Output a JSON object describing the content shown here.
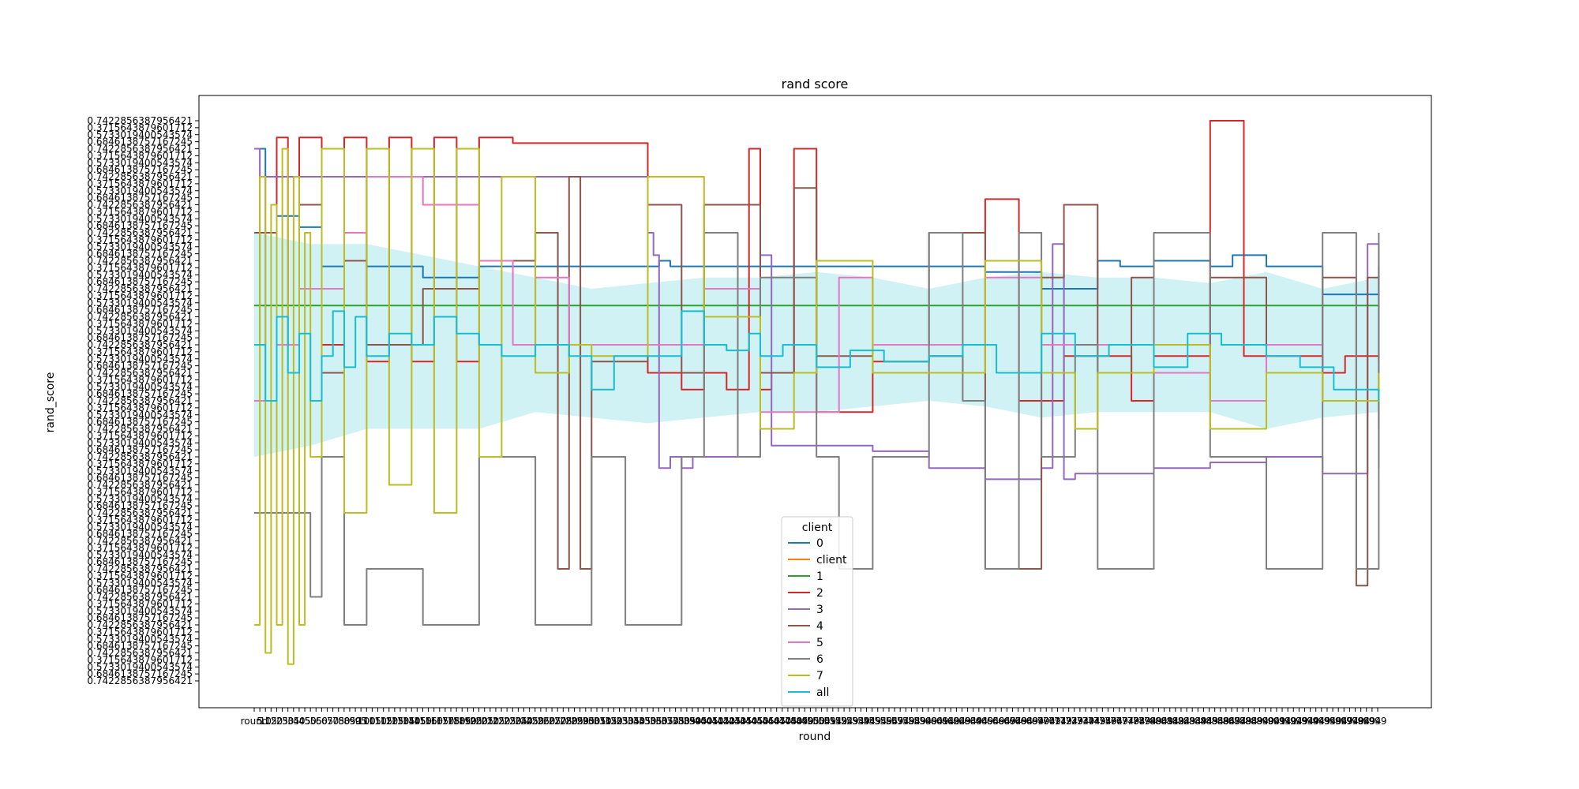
{
  "chart_data": {
    "type": "line",
    "title": "rand score",
    "xlabel": "round",
    "ylabel": "rand_score",
    "x_first_tick_label": "round",
    "y_tick_label_samples": [
      "0.7422856387956421",
      "0.6846138757167245",
      "0.5733019400543574",
      "0.3715643879601712"
    ],
    "grid": false,
    "legend": {
      "title": "client",
      "position": "bottom-center",
      "entries": [
        {
          "name": "0",
          "color": "#1f77b4"
        },
        {
          "name": "client",
          "color": "#ff7f0e"
        },
        {
          "name": "1",
          "color": "#2ca02c"
        },
        {
          "name": "2",
          "color": "#d62728"
        },
        {
          "name": "3",
          "color": "#9467bd"
        },
        {
          "name": "4",
          "color": "#8c564b"
        },
        {
          "name": "5",
          "color": "#e377c2"
        },
        {
          "name": "6",
          "color": "#7f7f7f"
        },
        {
          "name": "7",
          "color": "#bcbd22"
        },
        {
          "name": "all",
          "color": "#17becf"
        }
      ]
    },
    "x_range": [
      0,
      999
    ],
    "y_range": [
      0,
      1
    ],
    "series": [
      {
        "name": "0",
        "color": "#1f77b4",
        "x": [
          0,
          10,
          20,
          40,
          60,
          80,
          100,
          150,
          200,
          250,
          300,
          350,
          360,
          370,
          450,
          500,
          550,
          600,
          650,
          700,
          750,
          770,
          800,
          850,
          870,
          900,
          950,
          970,
          1000
        ],
        "y": [
          0.95,
          0.9,
          0.83,
          0.81,
          0.74,
          0.8,
          0.74,
          0.72,
          0.74,
          0.74,
          0.74,
          0.74,
          0.75,
          0.74,
          0.74,
          0.74,
          0.74,
          0.74,
          0.73,
          0.7,
          0.75,
          0.74,
          0.75,
          0.74,
          0.76,
          0.74,
          0.69,
          0.69,
          0.74
        ]
      },
      {
        "name": "1",
        "color": "#2ca02c",
        "x": [
          0,
          1000
        ],
        "y": [
          0.67,
          0.67
        ]
      },
      {
        "name": "2",
        "color": "#d62728",
        "x": [
          0,
          20,
          30,
          40,
          60,
          80,
          100,
          120,
          140,
          160,
          180,
          200,
          230,
          260,
          300,
          330,
          350,
          380,
          400,
          420,
          440,
          450,
          460,
          480,
          500,
          530,
          550,
          600,
          630,
          650,
          680,
          700,
          720,
          780,
          800,
          850,
          880,
          900,
          950,
          970,
          1000
        ],
        "y": [
          0.5,
          0.97,
          0.6,
          0.97,
          0.6,
          0.97,
          0.57,
          0.97,
          0.57,
          0.97,
          0.57,
          0.97,
          0.96,
          0.96,
          0.96,
          0.96,
          0.55,
          0.52,
          0.55,
          0.52,
          0.95,
          0.52,
          0.55,
          0.95,
          0.48,
          0.48,
          0.57,
          0.58,
          0.55,
          0.86,
          0.5,
          0.5,
          0.58,
          0.5,
          0.58,
          1.0,
          0.58,
          0.58,
          0.55,
          0.58,
          0.57
        ]
      },
      {
        "name": "3",
        "color": "#9467bd",
        "x": [
          0,
          5,
          10,
          350,
          355,
          360,
          370,
          380,
          390,
          400,
          420,
          440,
          450,
          460,
          500,
          550,
          600,
          650,
          700,
          710,
          720,
          730,
          800,
          850,
          900,
          950,
          980,
          990,
          1000
        ],
        "y": [
          0.95,
          0.6,
          0.9,
          0.8,
          0.76,
          0.38,
          0.4,
          0.38,
          0.4,
          0.4,
          0.4,
          0.4,
          0.76,
          0.42,
          0.42,
          0.41,
          0.38,
          0.36,
          0.38,
          0.78,
          0.36,
          0.37,
          0.38,
          0.39,
          0.4,
          0.37,
          0.37,
          0.78,
          0.38
        ]
      },
      {
        "name": "4",
        "color": "#8c564b",
        "x": [
          0,
          20,
          40,
          60,
          80,
          100,
          150,
          200,
          250,
          270,
          280,
          290,
          300,
          350,
          380,
          400,
          450,
          480,
          500,
          550,
          600,
          650,
          700,
          720,
          750,
          780,
          800,
          850,
          900,
          950,
          980,
          990,
          1000
        ],
        "y": [
          0.8,
          0.6,
          0.85,
          0.55,
          0.75,
          0.6,
          0.7,
          0.75,
          0.8,
          0.2,
          0.9,
          0.2,
          0.57,
          0.85,
          0.55,
          0.85,
          0.55,
          0.88,
          0.58,
          0.6,
          0.8,
          0.2,
          0.72,
          0.85,
          0.55,
          0.72,
          0.6,
          0.72,
          0.55,
          0.72,
          0.17,
          0.72,
          0.45
        ]
      },
      {
        "name": "5",
        "color": "#e377c2",
        "x": [
          0,
          20,
          40,
          80,
          100,
          150,
          200,
          230,
          250,
          270,
          280,
          300,
          350,
          400,
          450,
          500,
          520,
          550,
          600,
          650,
          700,
          750,
          800,
          850,
          900,
          950,
          1000
        ],
        "y": [
          0.5,
          0.6,
          0.7,
          0.8,
          0.9,
          0.85,
          0.75,
          0.6,
          0.72,
          0.72,
          0.6,
          0.6,
          0.6,
          0.7,
          0.48,
          0.48,
          0.72,
          0.6,
          0.6,
          0.72,
          0.6,
          0.6,
          0.55,
          0.5,
          0.6,
          0.5,
          0.55
        ]
      },
      {
        "name": "6",
        "color": "#7f7f7f",
        "x": [
          0,
          50,
          60,
          80,
          100,
          150,
          200,
          250,
          300,
          330,
          350,
          380,
          400,
          430,
          450,
          500,
          520,
          550,
          600,
          630,
          650,
          680,
          700,
          730,
          750,
          800,
          850,
          900,
          950,
          980,
          1000
        ],
        "y": [
          0.3,
          0.15,
          0.4,
          0.1,
          0.2,
          0.1,
          0.4,
          0.1,
          0.4,
          0.1,
          0.1,
          0.4,
          0.8,
          0.4,
          0.72,
          0.4,
          0.2,
          0.4,
          0.8,
          0.5,
          0.2,
          0.8,
          0.4,
          0.6,
          0.2,
          0.8,
          0.4,
          0.2,
          0.8,
          0.2,
          0.8
        ]
      },
      {
        "name": "7",
        "color": "#bcbd22",
        "x": [
          0,
          5,
          10,
          15,
          20,
          25,
          30,
          35,
          40,
          45,
          50,
          60,
          80,
          100,
          120,
          140,
          160,
          180,
          200,
          220,
          250,
          280,
          300,
          350,
          400,
          430,
          450,
          480,
          500,
          550,
          600,
          650,
          700,
          730,
          750,
          800,
          850,
          900,
          950,
          1000
        ],
        "y": [
          0.1,
          0.9,
          0.05,
          0.85,
          0.1,
          0.95,
          0.03,
          0.9,
          0.1,
          0.8,
          0.4,
          0.95,
          0.3,
          0.95,
          0.35,
          0.95,
          0.3,
          0.95,
          0.4,
          0.9,
          0.55,
          0.6,
          0.58,
          0.9,
          0.65,
          0.65,
          0.45,
          0.55,
          0.75,
          0.55,
          0.55,
          0.75,
          0.55,
          0.45,
          0.55,
          0.6,
          0.45,
          0.55,
          0.5,
          0.55
        ]
      },
      {
        "name": "all",
        "color": "#17becf",
        "x": [
          0,
          10,
          20,
          30,
          40,
          50,
          60,
          70,
          80,
          90,
          100,
          120,
          140,
          160,
          180,
          200,
          220,
          250,
          280,
          300,
          320,
          350,
          380,
          400,
          420,
          440,
          450,
          470,
          500,
          530,
          560,
          600,
          630,
          660,
          700,
          730,
          760,
          800,
          830,
          860,
          900,
          930,
          960,
          1000
        ],
        "y": [
          0.6,
          0.5,
          0.65,
          0.55,
          0.62,
          0.5,
          0.58,
          0.66,
          0.56,
          0.65,
          0.58,
          0.62,
          0.6,
          0.65,
          0.62,
          0.6,
          0.58,
          0.6,
          0.58,
          0.52,
          0.58,
          0.58,
          0.66,
          0.6,
          0.59,
          0.62,
          0.58,
          0.6,
          0.56,
          0.59,
          0.57,
          0.58,
          0.6,
          0.55,
          0.62,
          0.58,
          0.6,
          0.56,
          0.62,
          0.6,
          0.58,
          0.56,
          0.52,
          0.5
        ]
      }
    ],
    "band": {
      "series": "all",
      "color": "#17becf",
      "opacity": 0.2,
      "x": [
        0,
        50,
        100,
        150,
        200,
        250,
        300,
        350,
        400,
        450,
        500,
        550,
        600,
        650,
        700,
        750,
        800,
        850,
        900,
        950,
        1000
      ],
      "low": [
        0.4,
        0.42,
        0.45,
        0.45,
        0.45,
        0.48,
        0.47,
        0.46,
        0.47,
        0.48,
        0.48,
        0.49,
        0.5,
        0.49,
        0.47,
        0.48,
        0.48,
        0.48,
        0.45,
        0.47,
        0.48
      ],
      "high": [
        0.8,
        0.78,
        0.78,
        0.76,
        0.74,
        0.72,
        0.7,
        0.71,
        0.72,
        0.72,
        0.73,
        0.72,
        0.7,
        0.72,
        0.73,
        0.72,
        0.72,
        0.71,
        0.73,
        0.7,
        0.72
      ]
    }
  }
}
